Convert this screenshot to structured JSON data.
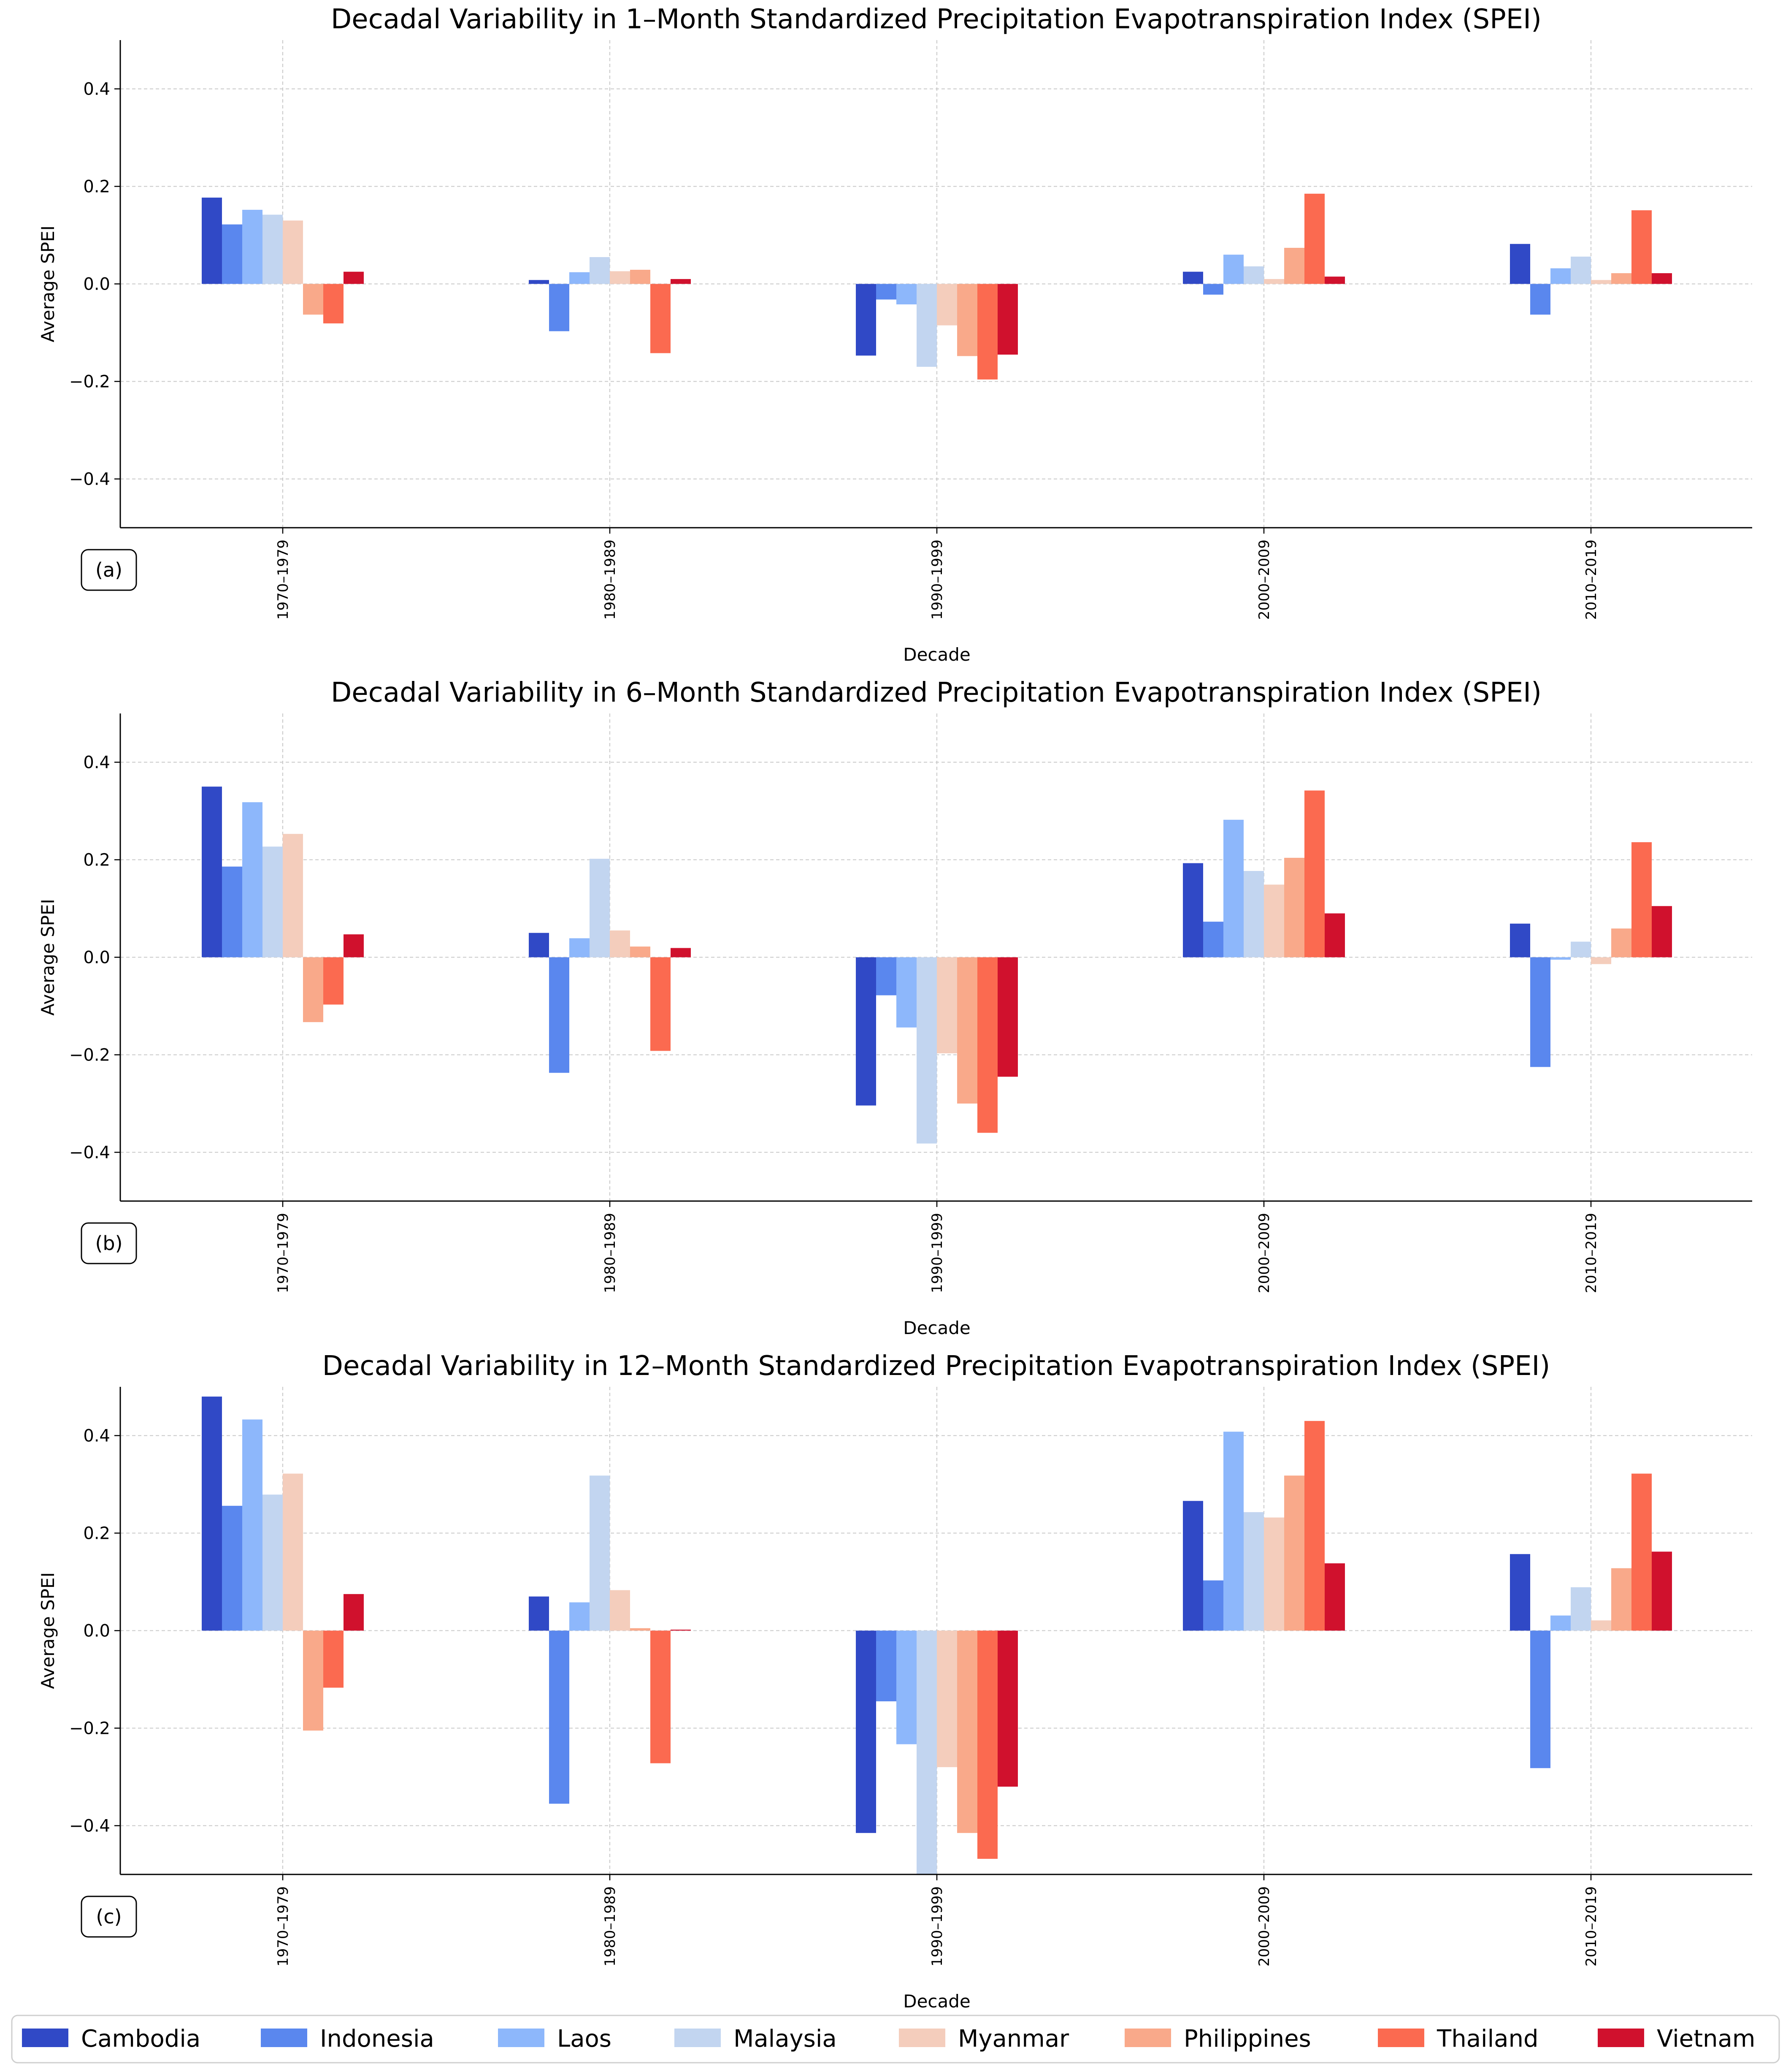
{
  "chart_data": [
    {
      "type": "bar",
      "title": "Decadal Variability in 1–Month Standardized Precipitation Evapotranspiration Index (SPEI)",
      "panel_label": "(a)",
      "xlabel": "Decade",
      "ylabel": "Average SPEI",
      "ylim": [
        -0.5,
        0.5
      ],
      "yticks": [
        -0.4,
        -0.2,
        0.0,
        0.2,
        0.4
      ],
      "ytick_labels": [
        "−0.4",
        "−0.2",
        "0.0",
        "0.2",
        "0.4"
      ],
      "grid": true,
      "categories": [
        "1970–1979",
        "1980–1989",
        "1990–1999",
        "2000–2009",
        "2010–2019"
      ],
      "series": [
        {
          "name": "Cambodia",
          "values": [
            0.177,
            0.008,
            -0.147,
            0.025,
            0.082
          ]
        },
        {
          "name": "Indonesia",
          "values": [
            0.122,
            -0.097,
            -0.032,
            -0.022,
            -0.063
          ]
        },
        {
          "name": "Laos",
          "values": [
            0.152,
            0.024,
            -0.042,
            0.06,
            0.032
          ]
        },
        {
          "name": "Malaysia",
          "values": [
            0.142,
            0.055,
            -0.17,
            0.036,
            0.056
          ]
        },
        {
          "name": "Myanmar",
          "values": [
            0.13,
            0.026,
            -0.085,
            0.01,
            0.008
          ]
        },
        {
          "name": "Philippines",
          "values": [
            -0.063,
            0.029,
            -0.148,
            0.074,
            0.022
          ]
        },
        {
          "name": "Thailand",
          "values": [
            -0.081,
            -0.142,
            -0.196,
            0.185,
            0.151
          ]
        },
        {
          "name": "Vietnam",
          "values": [
            0.025,
            0.01,
            -0.145,
            0.015,
            0.022
          ]
        }
      ]
    },
    {
      "type": "bar",
      "title": "Decadal Variability in 6–Month Standardized Precipitation Evapotranspiration Index (SPEI)",
      "panel_label": "(b)",
      "xlabel": "Decade",
      "ylabel": "Average SPEI",
      "ylim": [
        -0.5,
        0.5
      ],
      "yticks": [
        -0.4,
        -0.2,
        0.0,
        0.2,
        0.4
      ],
      "ytick_labels": [
        "−0.4",
        "−0.2",
        "0.0",
        "0.2",
        "0.4"
      ],
      "grid": true,
      "categories": [
        "1970–1979",
        "1980–1989",
        "1990–1999",
        "2000–2009",
        "2010–2019"
      ],
      "series": [
        {
          "name": "Cambodia",
          "values": [
            0.35,
            0.05,
            -0.304,
            0.193,
            0.069
          ]
        },
        {
          "name": "Indonesia",
          "values": [
            0.186,
            -0.237,
            -0.078,
            0.073,
            -0.225
          ]
        },
        {
          "name": "Laos",
          "values": [
            0.318,
            0.039,
            -0.144,
            0.282,
            -0.005
          ]
        },
        {
          "name": "Malaysia",
          "values": [
            0.227,
            0.202,
            -0.382,
            0.177,
            0.032
          ]
        },
        {
          "name": "Myanmar",
          "values": [
            0.253,
            0.055,
            -0.197,
            0.149,
            -0.014
          ]
        },
        {
          "name": "Philippines",
          "values": [
            -0.133,
            0.022,
            -0.3,
            0.204,
            0.059
          ]
        },
        {
          "name": "Thailand",
          "values": [
            -0.097,
            -0.192,
            -0.36,
            0.342,
            0.236
          ]
        },
        {
          "name": "Vietnam",
          "values": [
            0.047,
            0.019,
            -0.245,
            0.09,
            0.105
          ]
        }
      ]
    },
    {
      "type": "bar",
      "title": "Decadal Variability in 12–Month Standardized Precipitation Evapotranspiration Index (SPEI)",
      "panel_label": "(c)",
      "xlabel": "Decade",
      "ylabel": "Average SPEI",
      "ylim": [
        -0.5,
        0.5
      ],
      "yticks": [
        -0.4,
        -0.2,
        0.0,
        0.2,
        0.4
      ],
      "ytick_labels": [
        "−0.4",
        "−0.2",
        "0.0",
        "0.2",
        "0.4"
      ],
      "grid": true,
      "categories": [
        "1970–1979",
        "1980–1989",
        "1990–1999",
        "2000–2009",
        "2010–2019"
      ],
      "series": [
        {
          "name": "Cambodia",
          "values": [
            0.48,
            0.07,
            -0.415,
            0.266,
            0.157
          ]
        },
        {
          "name": "Indonesia",
          "values": [
            0.256,
            -0.355,
            -0.145,
            0.103,
            -0.282
          ]
        },
        {
          "name": "Laos",
          "values": [
            0.433,
            0.058,
            -0.233,
            0.408,
            0.031
          ]
        },
        {
          "name": "Malaysia",
          "values": [
            0.279,
            0.318,
            -0.5,
            0.243,
            0.089
          ]
        },
        {
          "name": "Myanmar",
          "values": [
            0.322,
            0.083,
            -0.28,
            0.232,
            0.021
          ]
        },
        {
          "name": "Philippines",
          "values": [
            -0.205,
            0.005,
            -0.415,
            0.318,
            0.128
          ]
        },
        {
          "name": "Thailand",
          "values": [
            -0.117,
            -0.272,
            -0.468,
            0.43,
            0.322
          ]
        },
        {
          "name": "Vietnam",
          "values": [
            0.075,
            0.002,
            -0.32,
            0.138,
            0.162
          ]
        }
      ]
    }
  ],
  "legend": {
    "position": "bottom",
    "items": [
      {
        "name": "Cambodia",
        "color": "#3049c6"
      },
      {
        "name": "Indonesia",
        "color": "#5a87ee"
      },
      {
        "name": "Laos",
        "color": "#8db7fb"
      },
      {
        "name": "Malaysia",
        "color": "#c2d5f0"
      },
      {
        "name": "Myanmar",
        "color": "#f4cdbc"
      },
      {
        "name": "Philippines",
        "color": "#f9a98a"
      },
      {
        "name": "Thailand",
        "color": "#fb6a50"
      },
      {
        "name": "Vietnam",
        "color": "#d0112d"
      }
    ]
  }
}
